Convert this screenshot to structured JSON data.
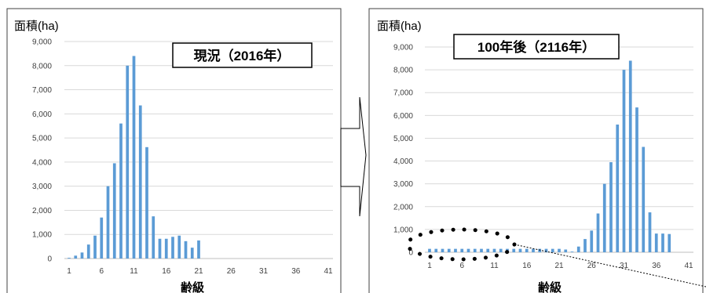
{
  "chart_data": [
    {
      "type": "bar",
      "callout": "現況（2016年）",
      "ylabel": "面積(ha)",
      "xlabel": "齢級",
      "ylim": [
        0,
        9000
      ],
      "yticks": [
        "0",
        "1,000",
        "2,000",
        "3,000",
        "4,000",
        "5,000",
        "6,000",
        "7,000",
        "8,000",
        "9,000"
      ],
      "xticks": [
        "1",
        "6",
        "11",
        "16",
        "21",
        "26",
        "31",
        "36",
        "41"
      ],
      "x_count": 41,
      "bar_color": "#5b9bd5",
      "gridlines": true,
      "values": [
        30,
        120,
        250,
        580,
        950,
        1700,
        3000,
        3950,
        5600,
        8000,
        8400,
        6350,
        4620,
        1750,
        820,
        820,
        900,
        950,
        720,
        450,
        750,
        0,
        0,
        0,
        0,
        0,
        0,
        0,
        0,
        0,
        0,
        0,
        0,
        0,
        0,
        0,
        0,
        0,
        0,
        0,
        0
      ]
    },
    {
      "type": "bar",
      "callout": "100年後（2116年）",
      "ylabel": "面積(ha)",
      "xlabel": "齢級",
      "ylim": [
        0,
        9000
      ],
      "yticks": [
        "0",
        "1,000",
        "2,000",
        "3,000",
        "4,000",
        "5,000",
        "6,000",
        "7,000",
        "8,000",
        "9,000"
      ],
      "xticks": [
        "1",
        "6",
        "11",
        "16",
        "21",
        "26",
        "31",
        "36",
        "41"
      ],
      "x_count": 41,
      "bar_color": "#5b9bd5",
      "gridlines": true,
      "values": [
        150,
        150,
        150,
        150,
        150,
        150,
        150,
        150,
        150,
        150,
        150,
        150,
        150,
        150,
        150,
        150,
        150,
        150,
        150,
        150,
        150,
        120,
        30,
        250,
        580,
        950,
        1700,
        3000,
        3950,
        5600,
        8000,
        8400,
        6350,
        4620,
        1750,
        820,
        820,
        800,
        0,
        0,
        0
      ]
    }
  ]
}
